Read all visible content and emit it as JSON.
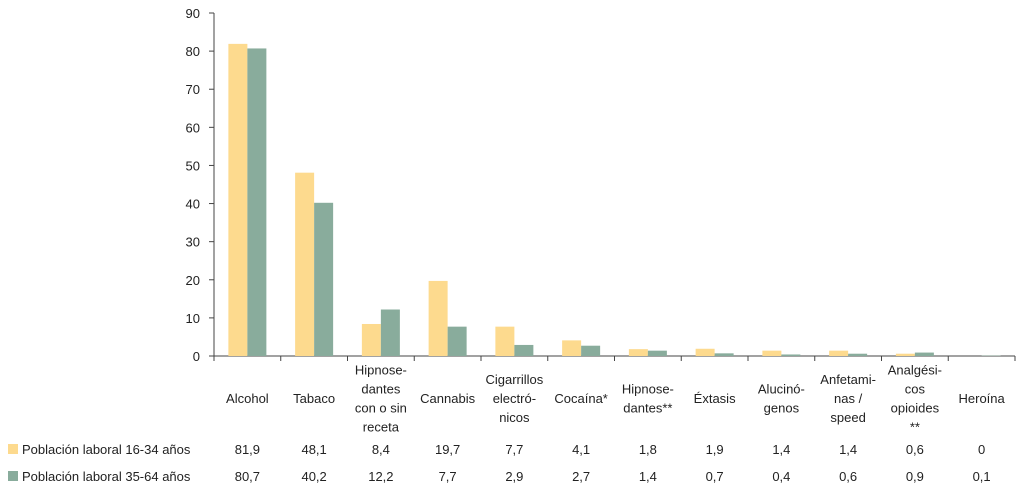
{
  "chart_data": {
    "type": "bar",
    "categories": [
      "Alcohol",
      "Tabaco",
      "Hipnose-\ndantes\ncon o sin\nreceta",
      "Cannabis",
      "Cigarrillos\nelectró-\nnicos",
      "Cocaína*",
      "Hipnose-\ndantes**",
      "Éxtasis",
      "Alucinó-\ngenos",
      "Anfetami-\nnas /\nspeed",
      "Analgési-\ncos\nopioides\n**",
      "Heroína"
    ],
    "series": [
      {
        "name": "Población laboral 16-34 años",
        "color": "#FDDA8E",
        "values": [
          81.9,
          48.1,
          8.4,
          19.7,
          7.7,
          4.1,
          1.8,
          1.9,
          1.4,
          1.4,
          0.6,
          0
        ],
        "labels": [
          "81,9",
          "48,1",
          "8,4",
          "19,7",
          "7,7",
          "4,1",
          "1,8",
          "1,9",
          "1,4",
          "1,4",
          "0,6",
          "0"
        ]
      },
      {
        "name": "Población laboral 35-64 años",
        "color": "#89AC9C",
        "values": [
          80.7,
          40.2,
          12.2,
          7.7,
          2.9,
          2.7,
          1.4,
          0.7,
          0.4,
          0.6,
          0.9,
          0.1
        ],
        "labels": [
          "80,7",
          "40,2",
          "12,2",
          "7,7",
          "2,9",
          "2,7",
          "1,4",
          "0,7",
          "0,4",
          "0,6",
          "0,9",
          "0,1"
        ]
      }
    ],
    "yticks": [
      "0",
      "10",
      "20",
      "30",
      "40",
      "50",
      "60",
      "70",
      "80",
      "90"
    ],
    "ylim": [
      0,
      90
    ],
    "grid": false,
    "legend_position": "bottom-left (data table)"
  }
}
